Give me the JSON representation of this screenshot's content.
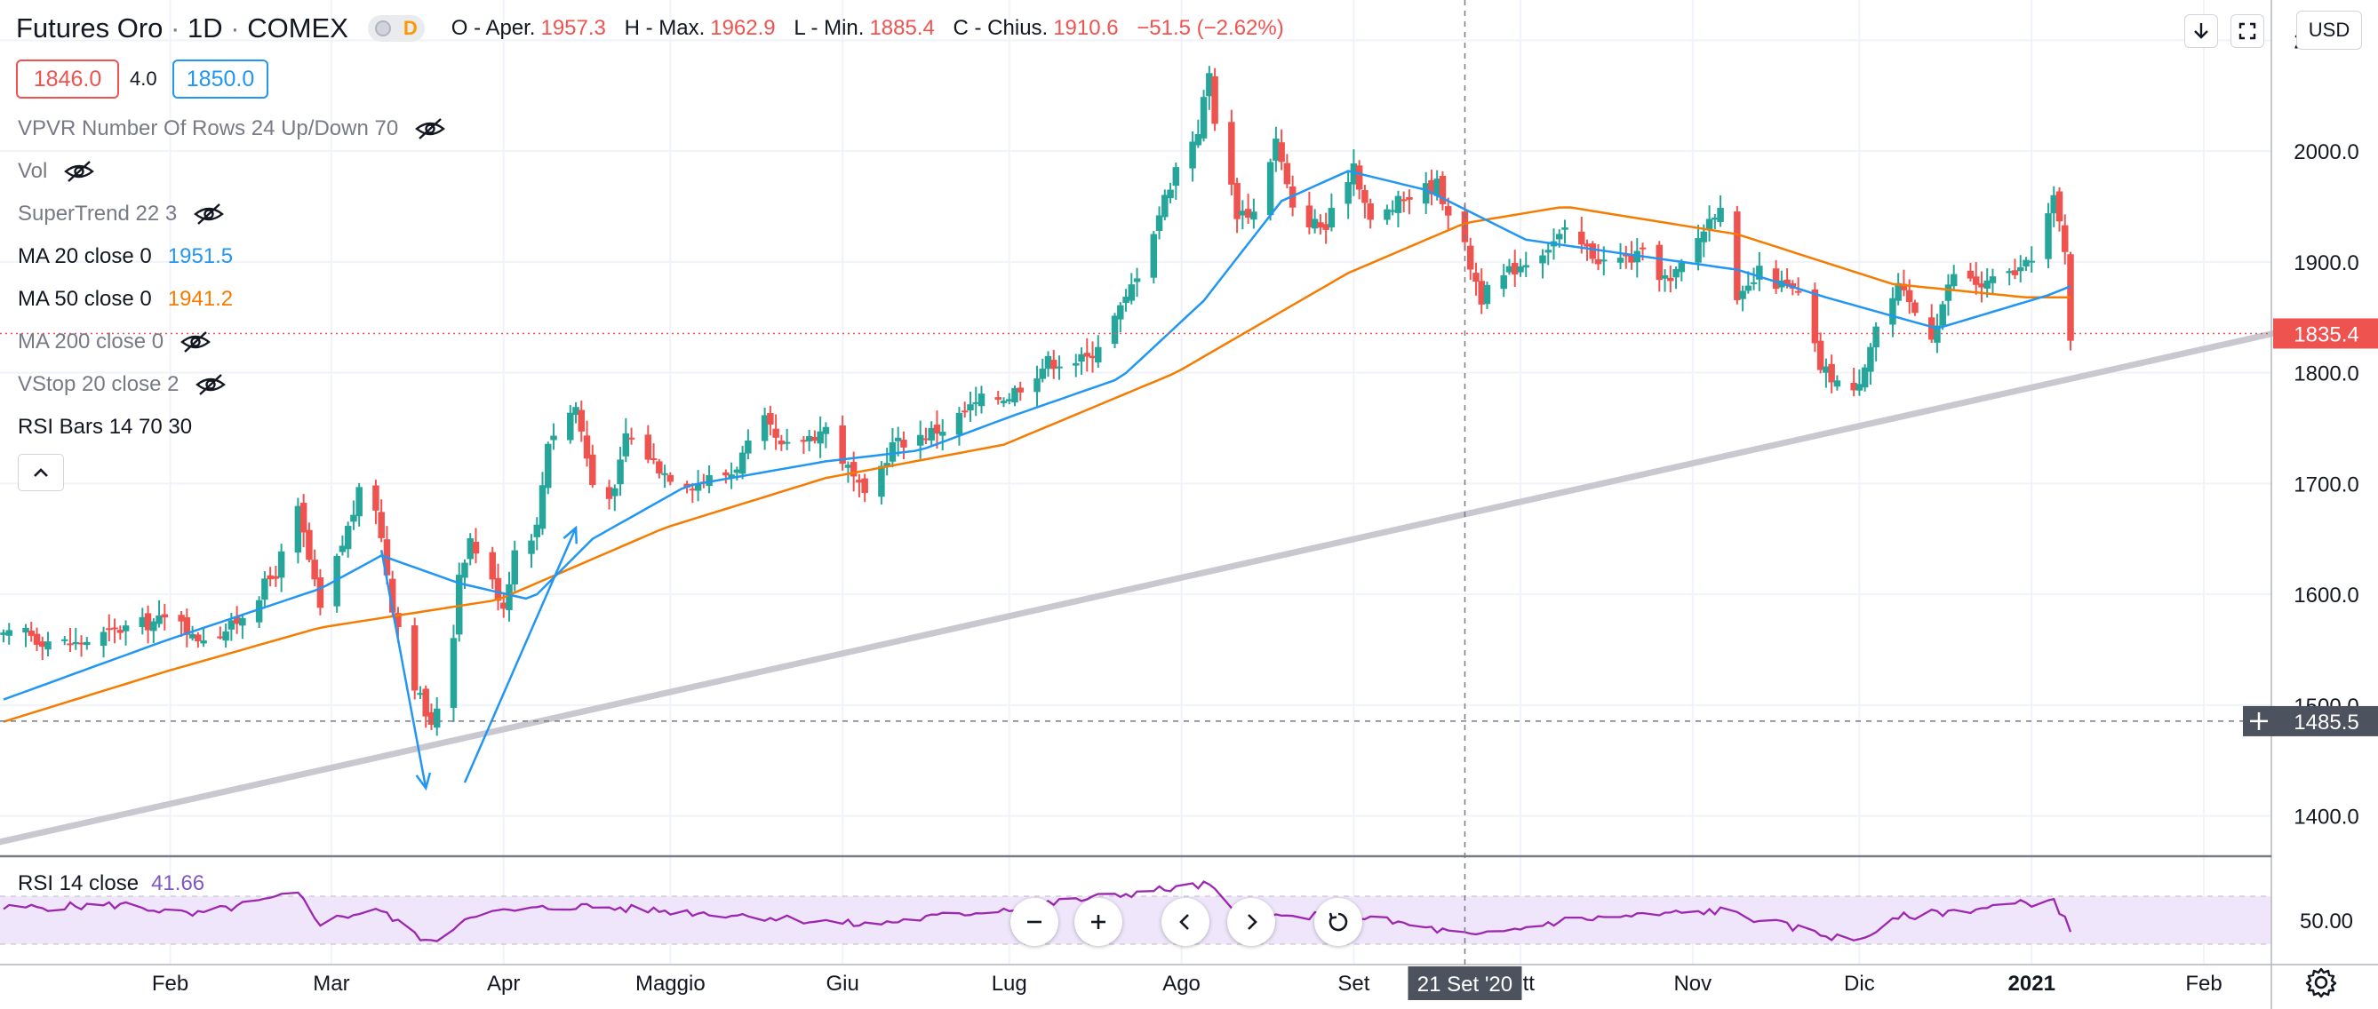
{
  "header": {
    "symbol": "Futures Oro",
    "sep1": "·",
    "interval": "1D",
    "sep2": "·",
    "exchange": "COMEX",
    "market_badge": "D",
    "open_label": "O - Aper.",
    "open": "1957.3",
    "high_label": "H - Max.",
    "high": "1962.9",
    "low_label": "L - Min.",
    "low": "1885.4",
    "close_label": "C - Chius.",
    "close": "1910.6",
    "change": "−51.5 (−2.62%)"
  },
  "quote": {
    "sell": "1846.0",
    "spread": "4.0",
    "buy": "1850.0"
  },
  "indicators": [
    {
      "label": "VPVR Number Of Rows 24 Up/Down 70",
      "hidden": true
    },
    {
      "label": "Vol",
      "hidden": true
    },
    {
      "label": "SuperTrend 22 3",
      "hidden": true
    },
    {
      "label": "MA 20 close 0",
      "value": "1951.5",
      "hidden": false
    },
    {
      "label": "MA 50 close 0",
      "value": "1941.2",
      "hidden": false
    },
    {
      "label": "MA 200 close 0",
      "hidden": true
    },
    {
      "label": "VStop 20 close 2",
      "hidden": true
    },
    {
      "label": "RSI Bars 14 70 30",
      "hidden": false
    }
  ],
  "toolbar": {
    "currency": "USD"
  },
  "rsi": {
    "label": "RSI 14 close",
    "value": "41.66"
  },
  "crosshair": {
    "date_label": "21 Set '20",
    "price_label": "1485.5"
  },
  "last_price_label": "1835.4",
  "icons": [
    "eye-off-icon",
    "chevron-up-icon",
    "download-icon",
    "fullscreen-icon",
    "zoom-out-icon",
    "zoom-in-icon",
    "scroll-left-icon",
    "scroll-right-icon",
    "reset-icon",
    "gear-icon",
    "plus-icon"
  ],
  "colors": {
    "up": "#26a69a",
    "down": "#ef5350",
    "ma20": "#2196f3",
    "ma50": "#f57c00",
    "rsi": "#9c27b0",
    "rsi_band": "#efe6fb",
    "trendline": "#c9c8d0",
    "price_line": "#ef5350"
  },
  "chart_data": {
    "type": "candlestick",
    "title": "Futures Oro · 1D · COMEX",
    "x_start": "2020-01-02",
    "x_end": "2021-01-08",
    "x_labels": [
      "Feb",
      "Mar",
      "Apr",
      "Maggio",
      "Giu",
      "Lug",
      "Ago",
      "Set",
      "Ott",
      "Nov",
      "Dic",
      "2021",
      "Feb"
    ],
    "x_label_dates": [
      "2020-02-01",
      "2020-03-01",
      "2020-04-01",
      "2020-05-01",
      "2020-06-01",
      "2020-07-01",
      "2020-08-01",
      "2020-09-01",
      "2020-10-01",
      "2020-11-01",
      "2020-12-01",
      "2021-01-01",
      "2021-02-01"
    ],
    "y_ticks": [
      "1400.0",
      "1500.0",
      "1600.0",
      "1700.0",
      "1800.0",
      "1900.0",
      "2000.0",
      "2100.0"
    ],
    "ylim": [
      1370,
      2130
    ],
    "rsi_ticks": [
      "50.00"
    ],
    "rsi_levels": [
      70,
      30
    ],
    "close_anchors": [
      {
        "date": "2020-01-02",
        "close": 1560
      },
      {
        "date": "2020-01-06",
        "close": 1568
      },
      {
        "date": "2020-01-08",
        "close": 1560
      },
      {
        "date": "2020-01-15",
        "close": 1555
      },
      {
        "date": "2020-01-24",
        "close": 1570
      },
      {
        "date": "2020-02-03",
        "close": 1580
      },
      {
        "date": "2020-02-05",
        "close": 1560
      },
      {
        "date": "2020-02-12",
        "close": 1570
      },
      {
        "date": "2020-02-20",
        "close": 1620
      },
      {
        "date": "2020-02-24",
        "close": 1675
      },
      {
        "date": "2020-02-28",
        "close": 1585
      },
      {
        "date": "2020-03-03",
        "close": 1645
      },
      {
        "date": "2020-03-06",
        "close": 1690
      },
      {
        "date": "2020-03-09",
        "close": 1680
      },
      {
        "date": "2020-03-12",
        "close": 1590
      },
      {
        "date": "2020-03-16",
        "close": 1520
      },
      {
        "date": "2020-03-19",
        "close": 1478
      },
      {
        "date": "2020-03-23",
        "close": 1565
      },
      {
        "date": "2020-03-24",
        "close": 1620
      },
      {
        "date": "2020-03-26",
        "close": 1650
      },
      {
        "date": "2020-04-01",
        "close": 1590
      },
      {
        "date": "2020-04-03",
        "close": 1640
      },
      {
        "date": "2020-04-07",
        "close": 1660
      },
      {
        "date": "2020-04-09",
        "close": 1740
      },
      {
        "date": "2020-04-14",
        "close": 1770
      },
      {
        "date": "2020-04-17",
        "close": 1700
      },
      {
        "date": "2020-04-21",
        "close": 1690
      },
      {
        "date": "2020-04-23",
        "close": 1745
      },
      {
        "date": "2020-04-30",
        "close": 1710
      },
      {
        "date": "2020-05-05",
        "close": 1700
      },
      {
        "date": "2020-05-12",
        "close": 1710
      },
      {
        "date": "2020-05-18",
        "close": 1755
      },
      {
        "date": "2020-05-21",
        "close": 1730
      },
      {
        "date": "2020-05-29",
        "close": 1750
      },
      {
        "date": "2020-06-05",
        "close": 1685
      },
      {
        "date": "2020-06-10",
        "close": 1735
      },
      {
        "date": "2020-06-19",
        "close": 1750
      },
      {
        "date": "2020-06-26",
        "close": 1775
      },
      {
        "date": "2020-07-01",
        "close": 1780
      },
      {
        "date": "2020-07-08",
        "close": 1810
      },
      {
        "date": "2020-07-15",
        "close": 1812
      },
      {
        "date": "2020-07-22",
        "close": 1865
      },
      {
        "date": "2020-07-27",
        "close": 1930
      },
      {
        "date": "2020-07-31",
        "close": 1985
      },
      {
        "date": "2020-08-04",
        "close": 2020
      },
      {
        "date": "2020-08-06",
        "close": 2070
      },
      {
        "date": "2020-08-07",
        "close": 2030
      },
      {
        "date": "2020-08-11",
        "close": 1945
      },
      {
        "date": "2020-08-14",
        "close": 1945
      },
      {
        "date": "2020-08-18",
        "close": 2010
      },
      {
        "date": "2020-08-21",
        "close": 1945
      },
      {
        "date": "2020-08-27",
        "close": 1930
      },
      {
        "date": "2020-09-01",
        "close": 1990
      },
      {
        "date": "2020-09-04",
        "close": 1935
      },
      {
        "date": "2020-09-11",
        "close": 1960
      },
      {
        "date": "2020-09-16",
        "close": 1970
      },
      {
        "date": "2020-09-21",
        "close": 1912
      },
      {
        "date": "2020-09-24",
        "close": 1868
      },
      {
        "date": "2020-09-30",
        "close": 1895
      },
      {
        "date": "2020-10-09",
        "close": 1925
      },
      {
        "date": "2020-10-16",
        "close": 1900
      },
      {
        "date": "2020-10-23",
        "close": 1905
      },
      {
        "date": "2020-10-28",
        "close": 1880
      },
      {
        "date": "2020-11-06",
        "close": 1955
      },
      {
        "date": "2020-11-09",
        "close": 1860
      },
      {
        "date": "2020-11-13",
        "close": 1890
      },
      {
        "date": "2020-11-20",
        "close": 1870
      },
      {
        "date": "2020-11-24",
        "close": 1805
      },
      {
        "date": "2020-11-30",
        "close": 1780
      },
      {
        "date": "2020-12-04",
        "close": 1842
      },
      {
        "date": "2020-12-08",
        "close": 1875
      },
      {
        "date": "2020-12-14",
        "close": 1835
      },
      {
        "date": "2020-12-18",
        "close": 1890
      },
      {
        "date": "2020-12-23",
        "close": 1878
      },
      {
        "date": "2020-12-31",
        "close": 1895
      },
      {
        "date": "2021-01-05",
        "close": 1955
      },
      {
        "date": "2021-01-07",
        "close": 1913
      },
      {
        "date": "2021-01-08",
        "close": 1835
      }
    ],
    "ma20_anchors": [
      {
        "date": "2020-01-02",
        "value": 1505
      },
      {
        "date": "2020-01-31",
        "value": 1558
      },
      {
        "date": "2020-02-28",
        "value": 1605
      },
      {
        "date": "2020-03-10",
        "value": 1635
      },
      {
        "date": "2020-03-24",
        "value": 1610
      },
      {
        "date": "2020-04-06",
        "value": 1595
      },
      {
        "date": "2020-04-17",
        "value": 1650
      },
      {
        "date": "2020-05-04",
        "value": 1698
      },
      {
        "date": "2020-05-29",
        "value": 1720
      },
      {
        "date": "2020-06-15",
        "value": 1730
      },
      {
        "date": "2020-07-01",
        "value": 1760
      },
      {
        "date": "2020-07-21",
        "value": 1795
      },
      {
        "date": "2020-08-05",
        "value": 1865
      },
      {
        "date": "2020-08-19",
        "value": 1955
      },
      {
        "date": "2020-08-31",
        "value": 1982
      },
      {
        "date": "2020-09-14",
        "value": 1965
      },
      {
        "date": "2020-10-02",
        "value": 1920
      },
      {
        "date": "2020-10-23",
        "value": 1905
      },
      {
        "date": "2020-11-09",
        "value": 1893
      },
      {
        "date": "2020-11-25",
        "value": 1868
      },
      {
        "date": "2020-12-15",
        "value": 1840
      },
      {
        "date": "2021-01-04",
        "value": 1870
      },
      {
        "date": "2021-01-08",
        "value": 1878
      }
    ],
    "ma50_anchors": [
      {
        "date": "2020-01-02",
        "value": 1485
      },
      {
        "date": "2020-01-31",
        "value": 1530
      },
      {
        "date": "2020-02-28",
        "value": 1570
      },
      {
        "date": "2020-03-31",
        "value": 1595
      },
      {
        "date": "2020-04-30",
        "value": 1660
      },
      {
        "date": "2020-05-29",
        "value": 1705
      },
      {
        "date": "2020-06-30",
        "value": 1735
      },
      {
        "date": "2020-07-31",
        "value": 1800
      },
      {
        "date": "2020-08-31",
        "value": 1890
      },
      {
        "date": "2020-09-21",
        "value": 1935
      },
      {
        "date": "2020-10-09",
        "value": 1950
      },
      {
        "date": "2020-11-09",
        "value": 1925
      },
      {
        "date": "2020-12-07",
        "value": 1880
      },
      {
        "date": "2020-12-31",
        "value": 1868
      },
      {
        "date": "2021-01-08",
        "value": 1868
      }
    ],
    "rsi_anchors": [
      {
        "date": "2020-01-02",
        "value": 60
      },
      {
        "date": "2020-01-24",
        "value": 63
      },
      {
        "date": "2020-02-05",
        "value": 54
      },
      {
        "date": "2020-02-24",
        "value": 72
      },
      {
        "date": "2020-02-28",
        "value": 48
      },
      {
        "date": "2020-03-09",
        "value": 60
      },
      {
        "date": "2020-03-19",
        "value": 30
      },
      {
        "date": "2020-03-26",
        "value": 55
      },
      {
        "date": "2020-04-14",
        "value": 62
      },
      {
        "date": "2020-05-15",
        "value": 54
      },
      {
        "date": "2020-06-05",
        "value": 46
      },
      {
        "date": "2020-07-01",
        "value": 60
      },
      {
        "date": "2020-07-27",
        "value": 75
      },
      {
        "date": "2020-08-06",
        "value": 80
      },
      {
        "date": "2020-08-11",
        "value": 52
      },
      {
        "date": "2020-09-01",
        "value": 54
      },
      {
        "date": "2020-09-23",
        "value": 36
      },
      {
        "date": "2020-10-09",
        "value": 50
      },
      {
        "date": "2020-11-06",
        "value": 58
      },
      {
        "date": "2020-11-30",
        "value": 32
      },
      {
        "date": "2020-12-09",
        "value": 53
      },
      {
        "date": "2021-01-05",
        "value": 67
      },
      {
        "date": "2021-01-08",
        "value": 41.66
      }
    ],
    "trendline": [
      {
        "date": "2019-12-31",
        "value": 1375
      },
      {
        "date": "2021-02-22",
        "value": 1845
      }
    ],
    "annotations": {
      "arrow_down": {
        "from": {
          "date": "2020-03-10",
          "value": 1640
        },
        "to": {
          "date": "2020-03-18",
          "value": 1425
        }
      },
      "arrow_up": {
        "from": {
          "date": "2020-03-25",
          "value": 1430
        },
        "to": {
          "date": "2020-04-14",
          "value": 1660
        }
      }
    },
    "last_price": 1835.4,
    "crosshair": {
      "date": "2020-09-21",
      "value": 1485.5
    }
  }
}
